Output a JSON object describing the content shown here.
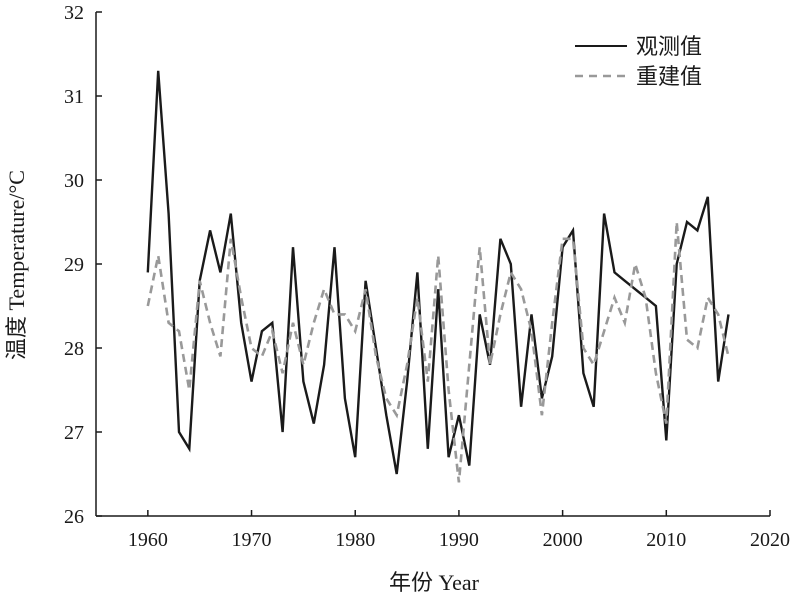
{
  "chart_data": {
    "type": "line",
    "title": "",
    "xlabel": "年份 Year",
    "ylabel": "温度 Temperature/°C",
    "xlim": [
      1955,
      2020
    ],
    "ylim": [
      26,
      32
    ],
    "x_ticks": [
      1960,
      1970,
      1980,
      1990,
      2000,
      2010,
      2020
    ],
    "y_ticks": [
      26,
      27,
      28,
      29,
      30,
      31,
      32
    ],
    "grid": false,
    "legend_position": "top-right",
    "x": [
      1960,
      1961,
      1962,
      1963,
      1964,
      1965,
      1966,
      1967,
      1968,
      1969,
      1970,
      1971,
      1972,
      1973,
      1974,
      1975,
      1976,
      1977,
      1978,
      1979,
      1980,
      1981,
      1982,
      1983,
      1984,
      1985,
      1986,
      1987,
      1988,
      1989,
      1990,
      1991,
      1992,
      1993,
      1994,
      1995,
      1996,
      1997,
      1998,
      1999,
      2000,
      2001,
      2002,
      2003,
      2004,
      2005,
      2006,
      2007,
      2008,
      2009,
      2010,
      2011,
      2012,
      2013,
      2014,
      2015,
      2016
    ],
    "series": [
      {
        "name": "观测值",
        "style": "solid",
        "color": "#1a1a1a",
        "values": [
          28.9,
          31.3,
          29.6,
          27.0,
          26.8,
          28.8,
          29.4,
          28.9,
          29.6,
          28.3,
          27.6,
          28.2,
          28.3,
          27.0,
          29.2,
          27.6,
          27.1,
          27.8,
          29.2,
          27.4,
          26.7,
          28.8,
          28.0,
          27.2,
          26.5,
          27.6,
          28.9,
          26.8,
          28.7,
          26.7,
          27.2,
          26.6,
          28.4,
          27.8,
          29.3,
          29.0,
          27.3,
          28.4,
          27.4,
          27.9,
          29.2,
          29.4,
          27.7,
          27.3,
          29.6,
          28.9,
          28.8,
          28.7,
          28.6,
          28.5,
          26.9,
          29.0,
          29.5,
          29.4,
          29.8,
          27.6,
          28.4
        ]
      },
      {
        "name": "重建值",
        "style": "dashed",
        "color": "#999999",
        "values": [
          28.5,
          29.1,
          28.3,
          28.2,
          27.5,
          28.8,
          28.3,
          27.9,
          29.3,
          28.6,
          28.0,
          27.9,
          28.2,
          27.7,
          28.3,
          27.8,
          28.3,
          28.7,
          28.4,
          28.4,
          28.2,
          28.7,
          27.9,
          27.4,
          27.2,
          27.8,
          28.6,
          27.6,
          29.1,
          27.5,
          26.4,
          27.8,
          29.2,
          27.8,
          28.4,
          28.9,
          28.7,
          28.2,
          27.2,
          28.3,
          29.3,
          29.3,
          28.0,
          27.8,
          28.2,
          28.6,
          28.3,
          29.0,
          28.6,
          27.7,
          27.1,
          29.5,
          28.1,
          28.0,
          28.6,
          28.4,
          27.9
        ]
      }
    ]
  }
}
